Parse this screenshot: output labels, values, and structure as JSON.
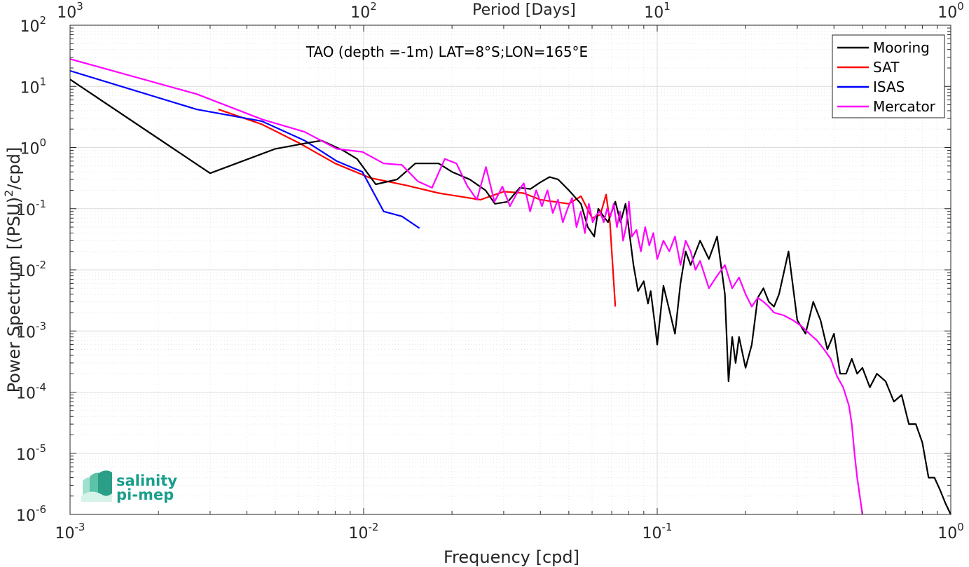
{
  "chart_data": {
    "type": "line",
    "title": "TAO (depth =-1m) LAT=8°S;LON=165°E",
    "xlabel": "Frequency [cpd]",
    "ylabel": "Power Spectrum [(PSU)",
    "ylabel_sup": "2",
    "ylabel_tail": "/cpd]",
    "x2label": "Period [Days]",
    "x_scale": "log",
    "y_scale": "log",
    "xlim": [
      0.001,
      1
    ],
    "ylim": [
      1e-06,
      100
    ],
    "grid": true,
    "legend_position": "top-right",
    "x_ticks": [
      {
        "base": "10",
        "exp": "-3"
      },
      {
        "base": "10",
        "exp": "-2"
      },
      {
        "base": "10",
        "exp": "-1"
      },
      {
        "base": "10",
        "exp": "0"
      }
    ],
    "x2_ticks": [
      {
        "base": "10",
        "exp": "3"
      },
      {
        "base": "10",
        "exp": "2"
      },
      {
        "base": "10",
        "exp": "1"
      },
      {
        "base": "10",
        "exp": "0"
      }
    ],
    "y_ticks": [
      {
        "base": "10",
        "exp": "2"
      },
      {
        "base": "10",
        "exp": "1"
      },
      {
        "base": "10",
        "exp": "0"
      },
      {
        "base": "10",
        "exp": "-1"
      },
      {
        "base": "10",
        "exp": "-2"
      },
      {
        "base": "10",
        "exp": "-3"
      },
      {
        "base": "10",
        "exp": "-4"
      },
      {
        "base": "10",
        "exp": "-5"
      },
      {
        "base": "10",
        "exp": "-6"
      }
    ],
    "series": [
      {
        "name": "Mooring",
        "color": "#000000",
        "x": [
          0.001,
          0.003,
          0.005,
          0.0065,
          0.0072,
          0.0085,
          0.0095,
          0.011,
          0.013,
          0.015,
          0.018,
          0.02,
          0.023,
          0.026,
          0.028,
          0.031,
          0.034,
          0.037,
          0.04,
          0.043,
          0.046,
          0.05,
          0.055,
          0.058,
          0.061,
          0.063,
          0.065,
          0.068,
          0.072,
          0.075,
          0.078,
          0.081,
          0.083,
          0.086,
          0.09,
          0.093,
          0.095,
          0.098,
          0.1,
          0.105,
          0.11,
          0.115,
          0.12,
          0.125,
          0.13,
          0.14,
          0.15,
          0.16,
          0.17,
          0.175,
          0.18,
          0.185,
          0.19,
          0.2,
          0.21,
          0.22,
          0.23,
          0.24,
          0.25,
          0.26,
          0.27,
          0.28,
          0.3,
          0.32,
          0.34,
          0.36,
          0.38,
          0.4,
          0.42,
          0.44,
          0.46,
          0.48,
          0.5,
          0.53,
          0.56,
          0.6,
          0.64,
          0.68,
          0.72,
          0.76,
          0.8,
          0.84,
          0.88,
          0.92,
          0.96,
          1.0
        ],
        "values": [
          13,
          0.38,
          0.95,
          1.2,
          1.3,
          0.9,
          0.65,
          0.25,
          0.3,
          0.55,
          0.55,
          0.4,
          0.3,
          0.2,
          0.12,
          0.13,
          0.22,
          0.21,
          0.27,
          0.33,
          0.3,
          0.2,
          0.12,
          0.05,
          0.035,
          0.1,
          0.08,
          0.06,
          0.13,
          0.06,
          0.12,
          0.03,
          0.012,
          0.0045,
          0.0065,
          0.0028,
          0.0045,
          0.0014,
          0.0006,
          0.0055,
          0.0022,
          0.0009,
          0.006,
          0.02,
          0.012,
          0.03,
          0.015,
          0.035,
          0.004,
          0.00015,
          0.0008,
          0.0003,
          0.0008,
          0.00025,
          0.0006,
          0.0035,
          0.005,
          0.003,
          0.0025,
          0.004,
          0.009,
          0.02,
          0.0015,
          0.0009,
          0.003,
          0.0015,
          0.0005,
          0.0009,
          0.0002,
          0.0002,
          0.00035,
          0.0002,
          0.00025,
          0.00012,
          0.0002,
          0.00015,
          7e-05,
          9e-05,
          3e-05,
          3e-05,
          1.5e-05,
          4e-06,
          4e-06,
          2.5e-06,
          1.5e-06,
          1e-06
        ]
      },
      {
        "name": "SAT",
        "color": "#ff0000",
        "x": [
          0.0032,
          0.0045,
          0.006,
          0.008,
          0.0105,
          0.014,
          0.018,
          0.025,
          0.03,
          0.035,
          0.04,
          0.05,
          0.055,
          0.06,
          0.064,
          0.067,
          0.069,
          0.072
        ],
        "values": [
          4.2,
          2.4,
          1.2,
          0.55,
          0.32,
          0.24,
          0.18,
          0.14,
          0.19,
          0.18,
          0.14,
          0.12,
          0.16,
          0.07,
          0.08,
          0.17,
          0.06,
          0.0025
        ]
      },
      {
        "name": "ISAS",
        "color": "#0000ff",
        "x": [
          0.001,
          0.0027,
          0.0045,
          0.0063,
          0.0081,
          0.0099,
          0.0117,
          0.0135,
          0.0155
        ],
        "values": [
          18,
          4.2,
          2.7,
          1.3,
          0.6,
          0.4,
          0.09,
          0.075,
          0.048
        ]
      },
      {
        "name": "Mercator",
        "color": "#ff00ff",
        "x": [
          0.001,
          0.0027,
          0.0045,
          0.0063,
          0.0081,
          0.0099,
          0.0117,
          0.0135,
          0.0153,
          0.0171,
          0.0189,
          0.0207,
          0.0225,
          0.0243,
          0.0261,
          0.0279,
          0.0297,
          0.0315,
          0.0333,
          0.0351,
          0.0369,
          0.0387,
          0.0405,
          0.0423,
          0.0441,
          0.0459,
          0.0477,
          0.0495,
          0.0513,
          0.0531,
          0.0549,
          0.0567,
          0.0585,
          0.0603,
          0.0621,
          0.0639,
          0.0657,
          0.0675,
          0.0693,
          0.0711,
          0.0729,
          0.0747,
          0.0765,
          0.0783,
          0.0801,
          0.082,
          0.085,
          0.088,
          0.091,
          0.094,
          0.097,
          0.1,
          0.105,
          0.11,
          0.115,
          0.12,
          0.125,
          0.13,
          0.135,
          0.14,
          0.15,
          0.16,
          0.17,
          0.18,
          0.19,
          0.2,
          0.21,
          0.22,
          0.23,
          0.24,
          0.25,
          0.27,
          0.29,
          0.31,
          0.33,
          0.35,
          0.37,
          0.39,
          0.41,
          0.43,
          0.45,
          0.46,
          0.47,
          0.48,
          0.5
        ],
        "values": [
          28,
          7.5,
          2.9,
          1.8,
          0.95,
          0.85,
          0.55,
          0.52,
          0.28,
          0.22,
          0.65,
          0.55,
          0.24,
          0.14,
          0.48,
          0.13,
          0.23,
          0.11,
          0.18,
          0.26,
          0.09,
          0.2,
          0.11,
          0.2,
          0.085,
          0.14,
          0.06,
          0.1,
          0.15,
          0.05,
          0.09,
          0.04,
          0.12,
          0.06,
          0.08,
          0.09,
          0.06,
          0.1,
          0.075,
          0.12,
          0.05,
          0.09,
          0.03,
          0.05,
          0.13,
          0.035,
          0.045,
          0.02,
          0.05,
          0.025,
          0.04,
          0.015,
          0.03,
          0.02,
          0.035,
          0.012,
          0.03,
          0.02,
          0.01,
          0.014,
          0.005,
          0.008,
          0.012,
          0.005,
          0.0075,
          0.004,
          0.0025,
          0.0035,
          0.003,
          0.0025,
          0.002,
          0.0018,
          0.0015,
          0.0012,
          0.0009,
          0.0007,
          0.0005,
          0.00035,
          0.00018,
          0.00012,
          6e-05,
          3e-05,
          1e-05,
          4e-06,
          1e-06
        ]
      }
    ]
  },
  "logo": {
    "line1": "salinity",
    "line2": "pi-mep"
  }
}
